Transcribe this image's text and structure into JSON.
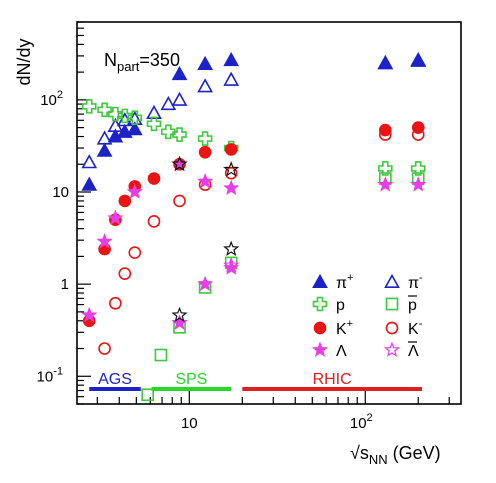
{
  "chart_data": {
    "type": "scatter",
    "title": "",
    "annotation": {
      "text": "N",
      "sub": "part",
      "rest": "=350"
    },
    "ylabel": "dN/dy",
    "xlabel": {
      "pre": "√s",
      "sub": "NN",
      "post": " (GeV)"
    },
    "xscale": "log",
    "yscale": "log",
    "xlim": [
      2.3,
      350
    ],
    "ylim": [
      0.05,
      700
    ],
    "x_ticks": [
      {
        "value": 10,
        "base": "10",
        "exp": ""
      },
      {
        "value": 100,
        "base": "10",
        "exp": "2"
      }
    ],
    "y_ticks": [
      {
        "value": 0.1,
        "base": "10",
        "exp": "-1"
      },
      {
        "value": 1,
        "base": "1",
        "exp": ""
      },
      {
        "value": 10,
        "base": "10",
        "exp": ""
      },
      {
        "value": 100,
        "base": "10",
        "exp": "2"
      }
    ],
    "legend_position": "bottom-right",
    "series": [
      {
        "name": "π",
        "sup": "+",
        "marker": "triangle",
        "filled": true,
        "color": "#1c22c8",
        "points": [
          [
            2.7,
            12
          ],
          [
            3.3,
            28
          ],
          [
            3.8,
            40
          ],
          [
            4.3,
            45
          ],
          [
            4.9,
            48
          ],
          [
            8.8,
            190
          ],
          [
            12.3,
            245
          ],
          [
            17.3,
            270
          ],
          [
            130,
            250
          ],
          [
            200,
            270
          ]
        ]
      },
      {
        "name": "π",
        "sup": "-",
        "marker": "triangle",
        "filled": false,
        "color": "#1c22c8",
        "points": [
          [
            2.7,
            21
          ],
          [
            3.3,
            38
          ],
          [
            3.8,
            52
          ],
          [
            4.3,
            60
          ],
          [
            4.9,
            62
          ],
          [
            6.3,
            72
          ],
          [
            7.6,
            90
          ],
          [
            8.8,
            100
          ],
          [
            12.3,
            140
          ],
          [
            17.3,
            165
          ],
          [
            130,
            250
          ],
          [
            200,
            265
          ]
        ]
      },
      {
        "name": "p",
        "sup": "",
        "marker": "cross",
        "filled": false,
        "color": "#3ec83e",
        "points": [
          [
            2.7,
            85
          ],
          [
            3.3,
            78
          ],
          [
            3.8,
            70
          ],
          [
            4.3,
            67
          ],
          [
            4.9,
            64
          ],
          [
            6.3,
            55
          ],
          [
            7.6,
            45
          ],
          [
            8.8,
            42
          ],
          [
            12.3,
            38
          ],
          [
            17.3,
            30
          ],
          [
            130,
            18
          ],
          [
            200,
            18
          ]
        ]
      },
      {
        "name": "p",
        "sup": "",
        "bar": true,
        "marker": "square",
        "filled": false,
        "color": "#3ec83e",
        "points": [
          [
            5.8,
            0.063
          ],
          [
            6.9,
            0.17
          ],
          [
            8.8,
            0.34
          ],
          [
            12.3,
            0.92
          ],
          [
            17.3,
            1.7
          ],
          [
            130,
            14
          ],
          [
            200,
            14
          ]
        ]
      },
      {
        "name": "K",
        "sup": "+",
        "marker": "circle",
        "filled": true,
        "color": "#ea1414",
        "points": [
          [
            2.7,
            0.4
          ],
          [
            3.3,
            2.4
          ],
          [
            3.8,
            5
          ],
          [
            4.3,
            8
          ],
          [
            4.9,
            11.5
          ],
          [
            6.3,
            14
          ],
          [
            8.8,
            20
          ],
          [
            12.3,
            27
          ],
          [
            17.3,
            29
          ],
          [
            130,
            47
          ],
          [
            200,
            50
          ]
        ]
      },
      {
        "name": "K",
        "sup": "-",
        "marker": "circle",
        "filled": false,
        "color": "#ea1414",
        "points": [
          [
            3.3,
            0.2
          ],
          [
            3.8,
            0.62
          ],
          [
            4.3,
            1.3
          ],
          [
            4.9,
            2.2
          ],
          [
            6.3,
            4.8
          ],
          [
            8.8,
            8
          ],
          [
            12.3,
            12
          ],
          [
            17.3,
            16
          ],
          [
            130,
            42
          ],
          [
            200,
            42
          ]
        ]
      },
      {
        "name": "Λ",
        "sup": "",
        "marker": "star",
        "filled": true,
        "color": "#e63fe6",
        "points": [
          [
            2.7,
            0.46
          ],
          [
            3.3,
            2.9
          ],
          [
            3.8,
            5.2
          ],
          [
            4.9,
            10
          ],
          [
            8.8,
            0.38
          ],
          [
            12.3,
            1
          ],
          [
            17.3,
            1.5
          ],
          [
            8.8,
            20
          ],
          [
            12.3,
            13
          ],
          [
            17.3,
            11
          ],
          [
            130,
            12
          ],
          [
            200,
            12
          ]
        ]
      },
      {
        "name": "Λ",
        "sup": "",
        "bar": true,
        "marker": "star",
        "filled": false,
        "color": "#e63fe6",
        "points": [
          [
            8.8,
            0.38
          ],
          [
            17.3,
            1.6
          ]
        ]
      },
      {
        "name": "",
        "marker": "star",
        "filled": false,
        "color": "#111111",
        "in_legend": false,
        "points": [
          [
            8.8,
            0.46
          ],
          [
            17.3,
            2.4
          ],
          [
            8.8,
            20
          ],
          [
            17.3,
            17.5
          ]
        ]
      }
    ],
    "energy_ranges": [
      {
        "label": "AGS",
        "from": 2.7,
        "to": 5.3,
        "color": "#1c22c8"
      },
      {
        "label": "SPS",
        "from": 6.1,
        "to": 17.3,
        "color": "#27d827"
      },
      {
        "label": "RHIC",
        "from": 20,
        "to": 210,
        "color": "#dc2020"
      }
    ]
  }
}
